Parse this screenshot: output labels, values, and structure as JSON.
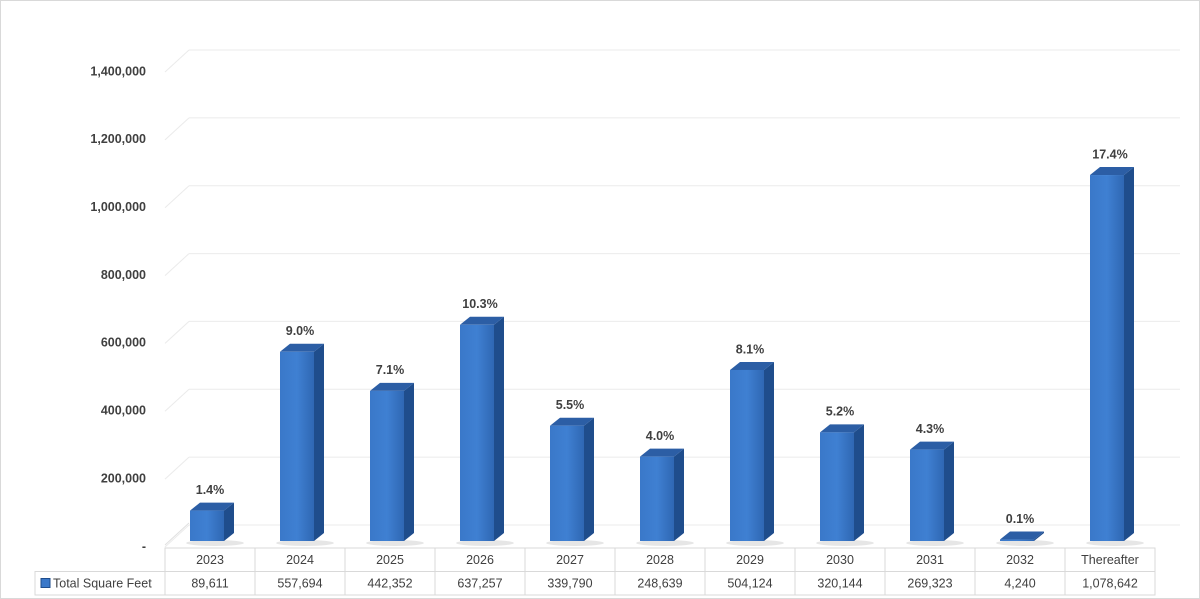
{
  "chart_data": {
    "type": "bar",
    "categories": [
      "2023",
      "2024",
      "2025",
      "2026",
      "2027",
      "2028",
      "2029",
      "2030",
      "2031",
      "2032",
      "Thereafter"
    ],
    "series": [
      {
        "name": "Total Square Feet",
        "color": "#3a78c9",
        "values": [
          89611,
          557694,
          442352,
          637257,
          339790,
          248639,
          504124,
          320144,
          269323,
          4240,
          1078642
        ],
        "value_labels": [
          "89,611",
          "557,694",
          "442,352",
          "637,257",
          "339,790",
          "248,639",
          "504,124",
          "320,144",
          "269,323",
          "4,240",
          "1,078,642"
        ],
        "percent_labels": [
          "1.4%",
          "9.0%",
          "7.1%",
          "10.3%",
          "5.5%",
          "4.0%",
          "8.1%",
          "5.2%",
          "4.3%",
          "0.1%",
          "17.4%"
        ]
      }
    ],
    "ylim": [
      0,
      1400000
    ],
    "yticks": [
      {
        "value": 0,
        "label": "-"
      },
      {
        "value": 200000,
        "label": "200,000"
      },
      {
        "value": 400000,
        "label": "400,000"
      },
      {
        "value": 600000,
        "label": "600,000"
      },
      {
        "value": 800000,
        "label": "800,000"
      },
      {
        "value": 1000000,
        "label": "1,000,000"
      },
      {
        "value": 1200000,
        "label": "1,200,000"
      },
      {
        "value": 1400000,
        "label": "1,400,000"
      }
    ],
    "grid": true
  }
}
